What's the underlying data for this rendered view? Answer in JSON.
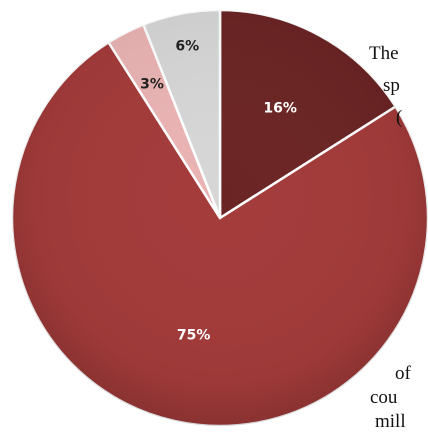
{
  "chart_data": {
    "type": "pie",
    "slices": [
      {
        "label": "16%",
        "value": 16,
        "color": "#6b2424"
      },
      {
        "label": "75%",
        "value": 75,
        "color": "#a33b3a"
      },
      {
        "label": "3%",
        "value": 3,
        "color": "#eab3b3"
      },
      {
        "label": "6%",
        "value": 6,
        "color": "#d6d6d6"
      }
    ],
    "label_colors": [
      "#ffffff",
      "#ffffff",
      "#222222",
      "#222222"
    ],
    "start_angle_deg": 0,
    "direction": "clockwise"
  },
  "side_text": [
    "The",
    "sp",
    "(",
    "of",
    "cou",
    "mill"
  ]
}
